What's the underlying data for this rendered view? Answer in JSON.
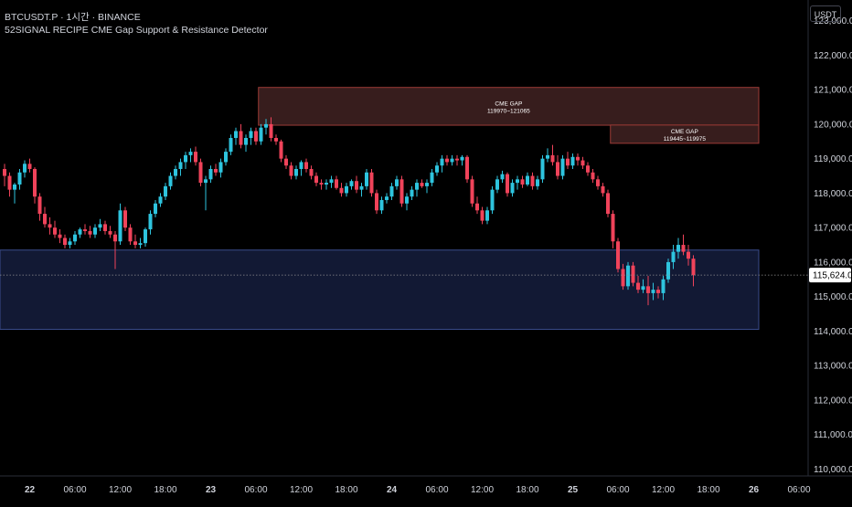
{
  "header": {
    "symbol": "BTCUSDT.P",
    "interval": "1시간",
    "exchange": "BINANCE",
    "indicator": "52SIGNAL RECIPE CME Gap Support & Resistance Detector"
  },
  "currency": "USDT",
  "colors": {
    "background": "#000000",
    "bull": "#2ec4de",
    "bear": "#f0435a",
    "gap_fill": "#3a1f1f",
    "gap_border": "#9c3a36",
    "support_fill": "#141c3a",
    "support_border": "#3a4c8c",
    "price_line": "#8f8f8f",
    "axis_text": "#d1d4dc"
  },
  "chart_data": {
    "type": "candlestick",
    "ylim": [
      109800,
      123600
    ],
    "y_ticks": [
      "123,000.0",
      "122,000.0",
      "121,000.0",
      "120,000.0",
      "119,000.0",
      "118,000.0",
      "117,000.0",
      "116,000.0",
      "115,000.0",
      "114,000.0",
      "113,000.0",
      "112,000.0",
      "111,000.0",
      "110,000.0"
    ],
    "x_ticks": [
      "22",
      "06:00",
      "12:00",
      "18:00",
      "23",
      "06:00",
      "12:00",
      "18:00",
      "24",
      "06:00",
      "12:00",
      "18:00",
      "25",
      "06:00",
      "12:00",
      "18:00",
      "26",
      "06:00"
    ],
    "x_tick_index": [
      5,
      14,
      23,
      32,
      41,
      50,
      59,
      68,
      77,
      86,
      95,
      104,
      113,
      122,
      131,
      140,
      149,
      158
    ],
    "last_price": "115,624.0",
    "last_price_value": 115624,
    "zones": [
      {
        "type": "cme_gap",
        "title": "CME GAP",
        "label": "119970~121065",
        "low": 119970,
        "high": 121065,
        "start_index": 51,
        "end_index": 150
      },
      {
        "type": "cme_gap",
        "title": "CME GAP",
        "label": "119445~119975",
        "low": 119445,
        "high": 119975,
        "start_index": 121,
        "end_index": 150
      },
      {
        "type": "support",
        "title": "",
        "label": "",
        "low": 114050,
        "high": 116350,
        "start_index": 0,
        "end_index": 150
      }
    ],
    "candles": [
      [
        118700,
        118850,
        118200,
        118500
      ],
      [
        118500,
        118600,
        117900,
        118100
      ],
      [
        118100,
        118300,
        117700,
        118250
      ],
      [
        118250,
        118700,
        118100,
        118600
      ],
      [
        118600,
        118950,
        118450,
        118850
      ],
      [
        118850,
        119000,
        118600,
        118700
      ],
      [
        118700,
        118750,
        117700,
        117900
      ],
      [
        117900,
        118000,
        117200,
        117400
      ],
      [
        117400,
        117600,
        117000,
        117100
      ],
      [
        117100,
        117300,
        116800,
        117000
      ],
      [
        117000,
        117200,
        116700,
        116800
      ],
      [
        116800,
        116950,
        116550,
        116700
      ],
      [
        116700,
        116800,
        116400,
        116500
      ],
      [
        116500,
        116700,
        116400,
        116600
      ],
      [
        116600,
        116900,
        116500,
        116800
      ],
      [
        116800,
        117000,
        116700,
        116950
      ],
      [
        116950,
        117100,
        116800,
        116900
      ],
      [
        116900,
        117050,
        116700,
        116800
      ],
      [
        116800,
        117100,
        116700,
        117000
      ],
      [
        117000,
        117250,
        116900,
        117100
      ],
      [
        117100,
        117200,
        116800,
        116900
      ],
      [
        116900,
        117050,
        116700,
        116800
      ],
      [
        116800,
        116900,
        115800,
        116600
      ],
      [
        116600,
        117700,
        116500,
        117500
      ],
      [
        117500,
        117600,
        116900,
        117000
      ],
      [
        117000,
        117100,
        116500,
        116600
      ],
      [
        116600,
        116800,
        116400,
        116500
      ],
      [
        116500,
        116700,
        116400,
        116550
      ],
      [
        116550,
        117000,
        116450,
        116950
      ],
      [
        116950,
        117500,
        116800,
        117400
      ],
      [
        117400,
        117800,
        117300,
        117700
      ],
      [
        117700,
        118000,
        117600,
        117900
      ],
      [
        117900,
        118300,
        117800,
        118200
      ],
      [
        118200,
        118600,
        118100,
        118500
      ],
      [
        118500,
        118800,
        118400,
        118700
      ],
      [
        118700,
        119000,
        118500,
        118900
      ],
      [
        118900,
        119200,
        118700,
        119100
      ],
      [
        119100,
        119300,
        118900,
        119200
      ],
      [
        119200,
        119350,
        118800,
        118900
      ],
      [
        118900,
        119000,
        118200,
        118300
      ],
      [
        118300,
        118500,
        117500,
        118400
      ],
      [
        118400,
        118800,
        118300,
        118700
      ],
      [
        118700,
        118850,
        118500,
        118600
      ],
      [
        118600,
        119000,
        118450,
        118900
      ],
      [
        118900,
        119300,
        118800,
        119200
      ],
      [
        119200,
        119700,
        119100,
        119600
      ],
      [
        119600,
        119900,
        119400,
        119800
      ],
      [
        119800,
        120000,
        119300,
        119400
      ],
      [
        119400,
        119700,
        119200,
        119600
      ],
      [
        119600,
        119900,
        119400,
        119800
      ],
      [
        119800,
        119900,
        119400,
        119500
      ],
      [
        119500,
        120000,
        119400,
        119900
      ],
      [
        119900,
        120150,
        119700,
        120000
      ],
      [
        120000,
        120200,
        119500,
        119600
      ],
      [
        119600,
        119700,
        119400,
        119500
      ],
      [
        119500,
        119550,
        118900,
        119000
      ],
      [
        119000,
        119100,
        118700,
        118800
      ],
      [
        118800,
        118900,
        118400,
        118500
      ],
      [
        118500,
        118800,
        118400,
        118700
      ],
      [
        118700,
        118950,
        118500,
        118900
      ],
      [
        118900,
        119000,
        118600,
        118700
      ],
      [
        118700,
        118800,
        118400,
        118500
      ],
      [
        118500,
        118600,
        118200,
        118300
      ],
      [
        118300,
        118400,
        118100,
        118250
      ],
      [
        118250,
        118400,
        118100,
        118300
      ],
      [
        118300,
        118500,
        118150,
        118400
      ],
      [
        118400,
        118500,
        118100,
        118150
      ],
      [
        118150,
        118300,
        117900,
        118000
      ],
      [
        118000,
        118300,
        117900,
        118200
      ],
      [
        118200,
        118400,
        118100,
        118350
      ],
      [
        118350,
        118500,
        118000,
        118100
      ],
      [
        118100,
        118300,
        117900,
        118200
      ],
      [
        118200,
        118700,
        118100,
        118600
      ],
      [
        118600,
        118700,
        117900,
        118000
      ],
      [
        118000,
        118100,
        117400,
        117500
      ],
      [
        117500,
        117900,
        117400,
        117800
      ],
      [
        117800,
        118000,
        117700,
        117900
      ],
      [
        117900,
        118300,
        117800,
        118200
      ],
      [
        118200,
        118500,
        118100,
        118400
      ],
      [
        118400,
        118500,
        117600,
        117700
      ],
      [
        117700,
        118000,
        117500,
        117900
      ],
      [
        117900,
        118200,
        117800,
        118100
      ],
      [
        118100,
        118400,
        117900,
        118300
      ],
      [
        118300,
        118400,
        118150,
        118200
      ],
      [
        118200,
        118400,
        118000,
        118300
      ],
      [
        118300,
        118700,
        118200,
        118600
      ],
      [
        118600,
        118900,
        118500,
        118800
      ],
      [
        118800,
        119100,
        118600,
        119000
      ],
      [
        119000,
        119100,
        118800,
        118900
      ],
      [
        118900,
        119100,
        118800,
        119000
      ],
      [
        119000,
        119100,
        118800,
        118950
      ],
      [
        118950,
        119100,
        118800,
        119050
      ],
      [
        119050,
        119100,
        118300,
        118400
      ],
      [
        118400,
        118500,
        117600,
        117700
      ],
      [
        117700,
        117900,
        117400,
        117500
      ],
      [
        117500,
        117600,
        117100,
        117200
      ],
      [
        117200,
        117600,
        117100,
        117500
      ],
      [
        117500,
        118200,
        117400,
        118100
      ],
      [
        118100,
        118500,
        118000,
        118400
      ],
      [
        118400,
        118650,
        118300,
        118550
      ],
      [
        118550,
        118600,
        117900,
        118000
      ],
      [
        118000,
        118400,
        117900,
        118300
      ],
      [
        118300,
        118500,
        118100,
        118400
      ],
      [
        118400,
        118500,
        118150,
        118250
      ],
      [
        118250,
        118600,
        118200,
        118500
      ],
      [
        118500,
        118600,
        118100,
        118200
      ],
      [
        118200,
        118500,
        118100,
        118400
      ],
      [
        118400,
        119100,
        118300,
        119000
      ],
      [
        119000,
        119300,
        118900,
        119100
      ],
      [
        119100,
        119400,
        118800,
        118900
      ],
      [
        118900,
        119100,
        118400,
        118500
      ],
      [
        118500,
        119100,
        118400,
        119000
      ],
      [
        119000,
        119200,
        118700,
        118800
      ],
      [
        118800,
        119150,
        118700,
        119050
      ],
      [
        119050,
        119150,
        118800,
        118950
      ],
      [
        118950,
        119050,
        118700,
        118800
      ],
      [
        118800,
        118900,
        118500,
        118600
      ],
      [
        118600,
        118700,
        118300,
        118400
      ],
      [
        118400,
        118500,
        118100,
        118200
      ],
      [
        118200,
        118300,
        117900,
        118000
      ],
      [
        118000,
        118100,
        117300,
        117400
      ],
      [
        117400,
        117500,
        116400,
        116600
      ],
      [
        116600,
        116700,
        115700,
        115800
      ],
      [
        115800,
        115950,
        115200,
        115300
      ],
      [
        115300,
        116000,
        115200,
        115900
      ],
      [
        115900,
        116000,
        115300,
        115400
      ],
      [
        115400,
        115600,
        115100,
        115200
      ],
      [
        115200,
        115500,
        115100,
        115300
      ],
      [
        115300,
        115600,
        114750,
        115100
      ],
      [
        115100,
        115400,
        114900,
        115200
      ],
      [
        115200,
        115300,
        114950,
        115100
      ],
      [
        115100,
        115600,
        114900,
        115500
      ],
      [
        115500,
        116100,
        115400,
        116000
      ],
      [
        116000,
        116500,
        115800,
        116300
      ],
      [
        116300,
        116700,
        116100,
        116500
      ],
      [
        116500,
        116800,
        116200,
        116300
      ],
      [
        116300,
        116500,
        115900,
        116100
      ],
      [
        116100,
        116200,
        115300,
        115624
      ]
    ]
  }
}
